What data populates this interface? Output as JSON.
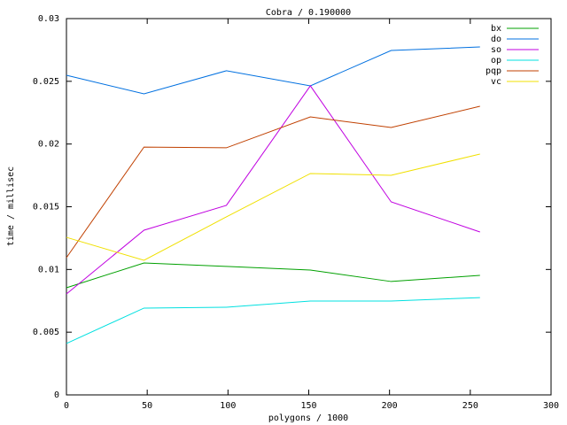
{
  "chart_data": {
    "type": "line",
    "title": "Cobra / 0.190000",
    "x_label": "polygons / 1000",
    "y_label": "time / millisec",
    "x": [
      0,
      48,
      99,
      151,
      201,
      256
    ],
    "series": [
      {
        "name": "bx",
        "color": "#00a000",
        "values": [
          0.00854,
          0.01052,
          0.01024,
          0.00995,
          0.00904,
          0.00953
        ]
      },
      {
        "name": "do",
        "color": "#0070e0",
        "values": [
          0.02548,
          0.024,
          0.02584,
          0.02464,
          0.02746,
          0.02774
        ]
      },
      {
        "name": "so",
        "color": "#c000e0",
        "values": [
          0.00805,
          0.01313,
          0.01511,
          0.02464,
          0.01539,
          0.01299
        ]
      },
      {
        "name": "op",
        "color": "#00e0e0",
        "values": [
          0.0041,
          0.00692,
          0.00699,
          0.00748,
          0.00748,
          0.00776
        ]
      },
      {
        "name": "pqp",
        "color": "#c04000",
        "values": [
          0.01094,
          0.01976,
          0.0197,
          0.02216,
          0.02132,
          0.02301
        ]
      },
      {
        "name": "vc",
        "color": "#f0e000",
        "values": [
          0.01256,
          0.01073,
          0.01419,
          0.01765,
          0.01751,
          0.0192
        ]
      }
    ],
    "xlim": [
      0,
      300
    ],
    "xticks": [
      0,
      50,
      100,
      150,
      200,
      250,
      300
    ],
    "ylim": [
      0,
      0.03
    ],
    "yticks": [
      0,
      0.005,
      0.01,
      0.015,
      0.02,
      0.025,
      0.03
    ],
    "legend": "top-right"
  }
}
